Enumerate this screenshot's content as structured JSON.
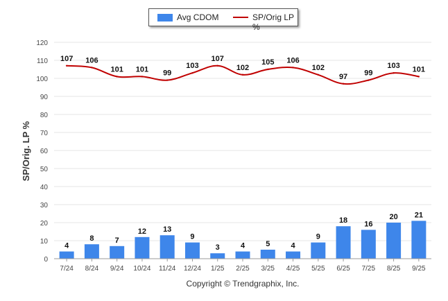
{
  "chart_data": {
    "type": "bar+line",
    "categories": [
      "7/24",
      "8/24",
      "9/24",
      "10/24",
      "11/24",
      "12/24",
      "1/25",
      "2/25",
      "3/25",
      "4/25",
      "5/25",
      "6/25",
      "7/25",
      "8/25",
      "9/25"
    ],
    "series": [
      {
        "name": "Avg CDOM",
        "type": "bar",
        "color": "#3e86ea",
        "values": [
          4,
          8,
          7,
          12,
          13,
          9,
          3,
          4,
          5,
          4,
          9,
          18,
          16,
          20,
          21
        ]
      },
      {
        "name": "SP/Orig LP %",
        "type": "line",
        "color": "#c00000",
        "values": [
          107,
          106,
          101,
          101,
          99,
          103,
          107,
          102,
          105,
          106,
          102,
          97,
          99,
          103,
          101
        ]
      }
    ],
    "ylabel": "SP/Orig. LP %",
    "ylim": [
      0,
      120
    ],
    "yticks": [
      0,
      10,
      20,
      30,
      40,
      50,
      60,
      70,
      80,
      90,
      100,
      110,
      120
    ],
    "grid": true,
    "legend": "top-center"
  },
  "footer": {
    "copyright": "Copyright © Trendgraphix, Inc."
  }
}
